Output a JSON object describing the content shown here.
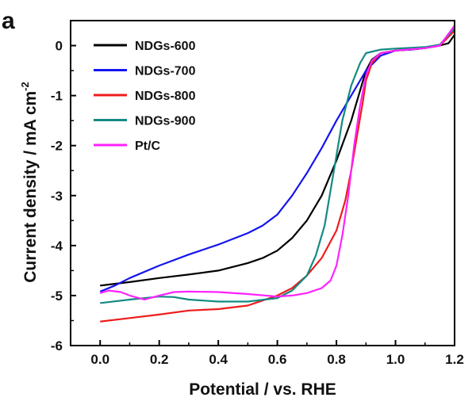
{
  "panel_label": "a",
  "chart_data": {
    "type": "line",
    "title": "",
    "xlabel": "Potential / vs. RHE",
    "ylabel_main": "Current density / mA cm",
    "ylabel_sup": "-2",
    "xlim": [
      -0.1,
      1.2
    ],
    "ylim": [
      -6,
      0.5
    ],
    "xticks": [
      0.0,
      0.2,
      0.4,
      0.6,
      0.8,
      1.0,
      1.2
    ],
    "xtick_labels": [
      "0.0",
      "0.2",
      "0.4",
      "0.6",
      "0.8",
      "1.0",
      "1.2"
    ],
    "yticks": [
      0,
      -1,
      -2,
      -3,
      -4,
      -5,
      -6
    ],
    "ytick_labels": [
      "0",
      "-1",
      "-2",
      "-3",
      "-4",
      "-5",
      "-6"
    ],
    "grid": false,
    "legend_position": "top-left",
    "series": [
      {
        "name": "NDGs-600",
        "color": "#000000",
        "points": [
          [
            0.0,
            -4.8
          ],
          [
            0.1,
            -4.73
          ],
          [
            0.2,
            -4.65
          ],
          [
            0.3,
            -4.58
          ],
          [
            0.4,
            -4.5
          ],
          [
            0.5,
            -4.35
          ],
          [
            0.55,
            -4.25
          ],
          [
            0.6,
            -4.1
          ],
          [
            0.65,
            -3.85
          ],
          [
            0.7,
            -3.5
          ],
          [
            0.75,
            -3.0
          ],
          [
            0.8,
            -2.3
          ],
          [
            0.85,
            -1.5
          ],
          [
            0.88,
            -0.9
          ],
          [
            0.9,
            -0.5
          ],
          [
            0.92,
            -0.28
          ],
          [
            0.95,
            -0.15
          ],
          [
            1.0,
            -0.1
          ],
          [
            1.05,
            -0.08
          ],
          [
            1.1,
            -0.05
          ],
          [
            1.15,
            0.0
          ],
          [
            1.18,
            0.05
          ],
          [
            1.2,
            0.22
          ]
        ]
      },
      {
        "name": "NDGs-700",
        "color": "#1515f0",
        "points": [
          [
            0.0,
            -4.92
          ],
          [
            0.05,
            -4.8
          ],
          [
            0.1,
            -4.65
          ],
          [
            0.2,
            -4.4
          ],
          [
            0.3,
            -4.18
          ],
          [
            0.4,
            -3.98
          ],
          [
            0.5,
            -3.75
          ],
          [
            0.55,
            -3.6
          ],
          [
            0.6,
            -3.38
          ],
          [
            0.65,
            -3.0
          ],
          [
            0.7,
            -2.55
          ],
          [
            0.75,
            -2.05
          ],
          [
            0.8,
            -1.5
          ],
          [
            0.85,
            -1.0
          ],
          [
            0.9,
            -0.5
          ],
          [
            0.95,
            -0.2
          ],
          [
            1.0,
            -0.1
          ],
          [
            1.05,
            -0.08
          ],
          [
            1.1,
            -0.05
          ],
          [
            1.15,
            0.0
          ],
          [
            1.2,
            0.3
          ]
        ]
      },
      {
        "name": "NDGs-800",
        "color": "#ee1c1c",
        "points": [
          [
            0.0,
            -5.52
          ],
          [
            0.1,
            -5.45
          ],
          [
            0.2,
            -5.38
          ],
          [
            0.3,
            -5.3
          ],
          [
            0.4,
            -5.27
          ],
          [
            0.5,
            -5.2
          ],
          [
            0.55,
            -5.1
          ],
          [
            0.6,
            -5.0
          ],
          [
            0.65,
            -4.85
          ],
          [
            0.7,
            -4.6
          ],
          [
            0.75,
            -4.25
          ],
          [
            0.8,
            -3.7
          ],
          [
            0.83,
            -3.1
          ],
          [
            0.85,
            -2.5
          ],
          [
            0.87,
            -1.8
          ],
          [
            0.89,
            -1.1
          ],
          [
            0.9,
            -0.7
          ],
          [
            0.92,
            -0.35
          ],
          [
            0.95,
            -0.15
          ],
          [
            1.0,
            -0.1
          ],
          [
            1.1,
            -0.05
          ],
          [
            1.15,
            0.0
          ],
          [
            1.2,
            0.3
          ]
        ]
      },
      {
        "name": "NDGs-900",
        "color": "#138a82",
        "points": [
          [
            0.0,
            -5.15
          ],
          [
            0.1,
            -5.08
          ],
          [
            0.2,
            -5.02
          ],
          [
            0.25,
            -5.03
          ],
          [
            0.3,
            -5.08
          ],
          [
            0.4,
            -5.12
          ],
          [
            0.5,
            -5.12
          ],
          [
            0.6,
            -5.05
          ],
          [
            0.65,
            -4.9
          ],
          [
            0.7,
            -4.6
          ],
          [
            0.73,
            -4.2
          ],
          [
            0.76,
            -3.6
          ],
          [
            0.78,
            -2.9
          ],
          [
            0.8,
            -2.2
          ],
          [
            0.82,
            -1.5
          ],
          [
            0.85,
            -0.8
          ],
          [
            0.88,
            -0.35
          ],
          [
            0.9,
            -0.15
          ],
          [
            0.95,
            -0.08
          ],
          [
            1.0,
            -0.06
          ],
          [
            1.1,
            -0.03
          ],
          [
            1.15,
            0.02
          ],
          [
            1.2,
            0.35
          ]
        ]
      },
      {
        "name": "Pt/C",
        "color": "#ff22ff",
        "points": [
          [
            0.0,
            -4.95
          ],
          [
            0.03,
            -4.9
          ],
          [
            0.07,
            -4.93
          ],
          [
            0.1,
            -5.0
          ],
          [
            0.15,
            -5.08
          ],
          [
            0.2,
            -5.0
          ],
          [
            0.25,
            -4.93
          ],
          [
            0.3,
            -4.92
          ],
          [
            0.4,
            -4.93
          ],
          [
            0.5,
            -4.97
          ],
          [
            0.6,
            -5.02
          ],
          [
            0.65,
            -5.0
          ],
          [
            0.7,
            -4.95
          ],
          [
            0.75,
            -4.85
          ],
          [
            0.78,
            -4.7
          ],
          [
            0.8,
            -4.4
          ],
          [
            0.82,
            -3.8
          ],
          [
            0.84,
            -3.0
          ],
          [
            0.86,
            -2.0
          ],
          [
            0.88,
            -1.2
          ],
          [
            0.9,
            -0.6
          ],
          [
            0.92,
            -0.3
          ],
          [
            0.95,
            -0.15
          ],
          [
            1.0,
            -0.1
          ],
          [
            1.1,
            -0.05
          ],
          [
            1.15,
            0.0
          ],
          [
            1.2,
            0.4
          ]
        ]
      }
    ]
  }
}
